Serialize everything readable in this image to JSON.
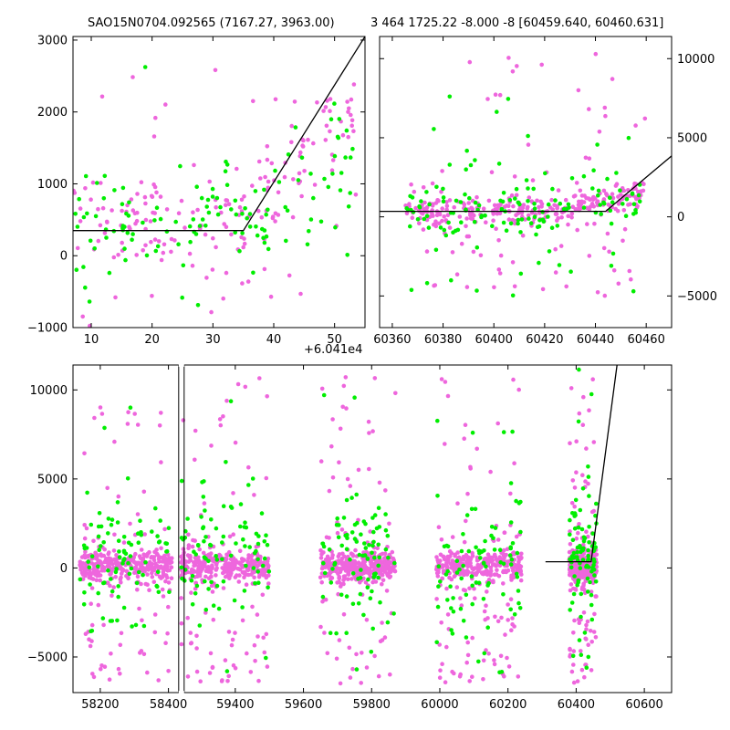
{
  "colors": {
    "magenta": "#ee66dd",
    "green": "#00ee00",
    "line": "#000000",
    "frame": "#000000",
    "background": "#ffffff"
  },
  "chart_data": [
    {
      "type": "scatter",
      "title": "SAO15N0704.092565 (7167.27, 3963.00)",
      "offset_label": "+6.041e4",
      "xlim": [
        7,
        55
      ],
      "ylim": [
        -1000,
        3050
      ],
      "xticks": [
        10,
        20,
        30,
        40,
        50
      ],
      "yticks": [
        -1000,
        0,
        1000,
        2000,
        3000
      ],
      "yaxis_side": "left",
      "series": [
        {
          "color": "magenta",
          "x_range": [
            7,
            54
          ],
          "y_core": [
            0,
            1000
          ],
          "y_spread": [
            -1000,
            3000
          ],
          "count": 190,
          "trend": [
            350,
            2100
          ]
        },
        {
          "color": "green",
          "x_range": [
            7,
            54
          ],
          "y_core": [
            0,
            1000
          ],
          "y_spread": [
            -700,
            2800
          ],
          "count": 130,
          "trend": [
            350,
            1400
          ]
        }
      ],
      "fit_line": [
        [
          7,
          350
        ],
        [
          35,
          350
        ],
        [
          55,
          3050
        ]
      ]
    },
    {
      "type": "scatter",
      "title": "3 464 1725.22 -8.000 -8 [60459.640, 60460.631]",
      "xlim": [
        60355,
        60470
      ],
      "ylim": [
        -7000,
        11400
      ],
      "xticks": [
        60360,
        60380,
        60400,
        60420,
        60440,
        60460
      ],
      "yticks": [
        -5000,
        0,
        5000,
        10000
      ],
      "yaxis_side": "right",
      "series": [
        {
          "color": "magenta",
          "x_range": [
            60365,
            60460
          ],
          "y_core": [
            -300,
            1000
          ],
          "y_spread": [
            -5000,
            11000
          ],
          "count": 340,
          "trend": [
            400,
            1500
          ]
        },
        {
          "color": "green",
          "x_range": [
            60365,
            60460
          ],
          "y_core": [
            -800,
            1500
          ],
          "y_spread": [
            -5000,
            11000
          ],
          "count": 150,
          "trend": [
            300,
            1200
          ]
        }
      ],
      "fit_line": [
        [
          60355,
          350
        ],
        [
          60444,
          350
        ],
        [
          60470,
          3850
        ]
      ]
    },
    {
      "type": "scatter",
      "title": "",
      "xlim": [
        58120,
        60680
      ],
      "ylim": [
        -7000,
        11400
      ],
      "xticks": [
        58200,
        58400,
        59400,
        59600,
        59800,
        60000,
        60200,
        60400,
        60600
      ],
      "yticks": [
        -5000,
        0,
        5000,
        10000
      ],
      "yaxis_side": "left",
      "broken_axis": {
        "gap_from": 58430,
        "gap_to": 59250
      },
      "series": [
        {
          "color": "magenta",
          "clusters": [
            [
              58140,
              58410
            ],
            [
              59240,
              59500
            ],
            [
              59650,
              59870
            ],
            [
              59990,
              60240
            ],
            [
              60380,
              60460
            ]
          ],
          "y_core": [
            -500,
            700
          ],
          "y_spread": [
            -6500,
            11000
          ],
          "count_per_cluster": 380
        },
        {
          "color": "green",
          "clusters": [
            [
              58140,
              58410
            ],
            [
              59240,
              59500
            ],
            [
              59650,
              59870
            ],
            [
              59990,
              60240
            ],
            [
              60380,
              60460
            ]
          ],
          "y_core": [
            -1500,
            3000
          ],
          "y_spread": [
            -6000,
            11200
          ],
          "count_per_cluster": 90
        }
      ],
      "fit_line": [
        [
          60310,
          350
        ],
        [
          60444,
          350
        ],
        [
          60520,
          11400
        ]
      ]
    }
  ]
}
